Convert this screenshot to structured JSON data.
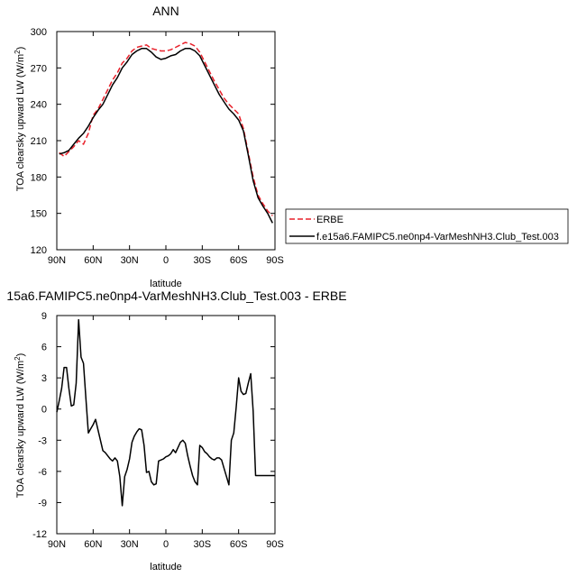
{
  "chart_data": [
    {
      "type": "line",
      "title": "ANN",
      "xlabel": "latitude",
      "ylabel": "TOA clearsky upward LW (W/m",
      "ylabel_sup": "2",
      "ylabel_tail": ")",
      "xlim": [
        90,
        -90
      ],
      "ylim": [
        120,
        300
      ],
      "xticks": [
        {
          "value": 90,
          "label": "90N"
        },
        {
          "value": 60,
          "label": "60N"
        },
        {
          "value": 30,
          "label": "30N"
        },
        {
          "value": 0,
          "label": "0"
        },
        {
          "value": -30,
          "label": "30S"
        },
        {
          "value": -60,
          "label": "60S"
        },
        {
          "value": -90,
          "label": "90S"
        }
      ],
      "yticks": [
        120,
        150,
        180,
        210,
        240,
        270,
        300
      ],
      "grid": false,
      "legend": {
        "placement": "right-outside"
      },
      "series": [
        {
          "name": "ERBE",
          "color": "#e8202a",
          "dash": "dashed",
          "x": [
            88,
            84,
            80,
            76,
            72,
            68,
            64,
            60,
            56,
            52,
            48,
            44,
            40,
            36,
            32,
            28,
            24,
            20,
            16,
            12,
            8,
            4,
            0,
            -4,
            -8,
            -12,
            -16,
            -20,
            -24,
            -28,
            -32,
            -36,
            -40,
            -44,
            -48,
            -52,
            -56,
            -60,
            -64,
            -68,
            -72,
            -76,
            -80,
            -84,
            -88
          ],
          "values": [
            200,
            197,
            201,
            205,
            210,
            207,
            216,
            231,
            236,
            244,
            252,
            260,
            266,
            274,
            278,
            284,
            287,
            288,
            289,
            286,
            285,
            284,
            284,
            285,
            287,
            289,
            291,
            290,
            288,
            283,
            275,
            267,
            259,
            252,
            245,
            240,
            236,
            232,
            220,
            200,
            180,
            165,
            158,
            152,
            148
          ]
        },
        {
          "name": "f.e15a6.FAMIPC5.ne0np4-VarMeshNH3.Club_Test.003",
          "color": "#000000",
          "dash": "solid",
          "x": [
            88,
            84,
            80,
            76,
            72,
            68,
            64,
            60,
            56,
            52,
            48,
            44,
            40,
            36,
            32,
            28,
            24,
            20,
            16,
            12,
            8,
            4,
            0,
            -4,
            -8,
            -12,
            -16,
            -20,
            -24,
            -28,
            -32,
            -36,
            -40,
            -44,
            -48,
            -52,
            -56,
            -60,
            -64,
            -68,
            -72,
            -76,
            -80,
            -84,
            -88
          ],
          "values": [
            199,
            200,
            202,
            207,
            212,
            216,
            222,
            229,
            235,
            240,
            248,
            256,
            262,
            270,
            275,
            281,
            284,
            286,
            286,
            283,
            279,
            277,
            278,
            280,
            281,
            284,
            286,
            286,
            284,
            280,
            272,
            264,
            256,
            248,
            242,
            236,
            232,
            227,
            218,
            198,
            177,
            163,
            156,
            150,
            142
          ]
        }
      ]
    },
    {
      "type": "line",
      "title": "15a6.FAMIPC5.ne0np4-VarMeshNH3.Club_Test.003 - ERBE",
      "xlabel": "latitude",
      "ylabel": "TOA clearsky upward LW (W/m",
      "ylabel_sup": "2",
      "ylabel_tail": ")",
      "xlim": [
        90,
        -90
      ],
      "ylim": [
        -12,
        9
      ],
      "xticks": [
        {
          "value": 90,
          "label": "90N"
        },
        {
          "value": 60,
          "label": "60N"
        },
        {
          "value": 30,
          "label": "30N"
        },
        {
          "value": 0,
          "label": "0"
        },
        {
          "value": -30,
          "label": "30S"
        },
        {
          "value": -60,
          "label": "60S"
        },
        {
          "value": -90,
          "label": "90S"
        }
      ],
      "yticks": [
        -12,
        -9,
        -6,
        -3,
        0,
        3,
        6,
        9
      ],
      "grid": false,
      "series": [
        {
          "color": "#000000",
          "x": [
            90,
            88,
            86,
            84,
            82,
            80,
            78,
            76,
            74,
            72,
            70,
            68,
            66,
            64,
            62,
            60,
            58,
            56,
            54,
            52,
            50,
            48,
            46,
            44,
            42,
            40,
            38,
            36,
            34,
            32,
            30,
            28,
            26,
            24,
            22,
            20,
            18,
            16,
            14,
            12,
            10,
            8,
            6,
            4,
            2,
            0,
            -2,
            -4,
            -6,
            -8,
            -10,
            -12,
            -14,
            -16,
            -18,
            -20,
            -22,
            -24,
            -26,
            -28,
            -30,
            -32,
            -34,
            -36,
            -38,
            -40,
            -42,
            -44,
            -46,
            -48,
            -50,
            -52,
            -54,
            -56,
            -58,
            -60,
            -62,
            -64,
            -66,
            -68,
            -70,
            -72,
            -74,
            -76,
            -78,
            -80,
            -82,
            -84,
            -86,
            -88,
            -90
          ],
          "values": [
            -0.3,
            0.8,
            2.0,
            4.0,
            4.0,
            2.0,
            0.3,
            0.4,
            2.5,
            8.6,
            5.0,
            4.4,
            1.0,
            -2.3,
            -1.9,
            -1.5,
            -1.0,
            -2.0,
            -3.0,
            -4.0,
            -4.2,
            -4.5,
            -4.8,
            -5.0,
            -4.7,
            -5.0,
            -6.5,
            -9.3,
            -6.5,
            -5.8,
            -4.8,
            -3.2,
            -2.6,
            -2.2,
            -1.9,
            -2.0,
            -3.5,
            -6.1,
            -6.0,
            -7.0,
            -7.3,
            -7.2,
            -5.0,
            -4.9,
            -4.8,
            -4.6,
            -4.5,
            -4.3,
            -3.9,
            -4.2,
            -3.7,
            -3.2,
            -3.0,
            -3.3,
            -4.5,
            -5.5,
            -6.4,
            -7.0,
            -7.3,
            -3.5,
            -3.7,
            -4.1,
            -4.3,
            -4.6,
            -4.8,
            -4.9,
            -4.7,
            -4.7,
            -4.9,
            -5.7,
            -6.5,
            -7.3,
            -3.0,
            -2.3,
            0.2,
            3.0,
            1.7,
            1.4,
            1.5,
            2.5,
            3.4,
            -0.2,
            -6.4,
            -6.4,
            -6.4,
            -6.4,
            -6.4,
            -6.4,
            -6.4,
            -6.4,
            -6.4
          ]
        }
      ]
    }
  ]
}
